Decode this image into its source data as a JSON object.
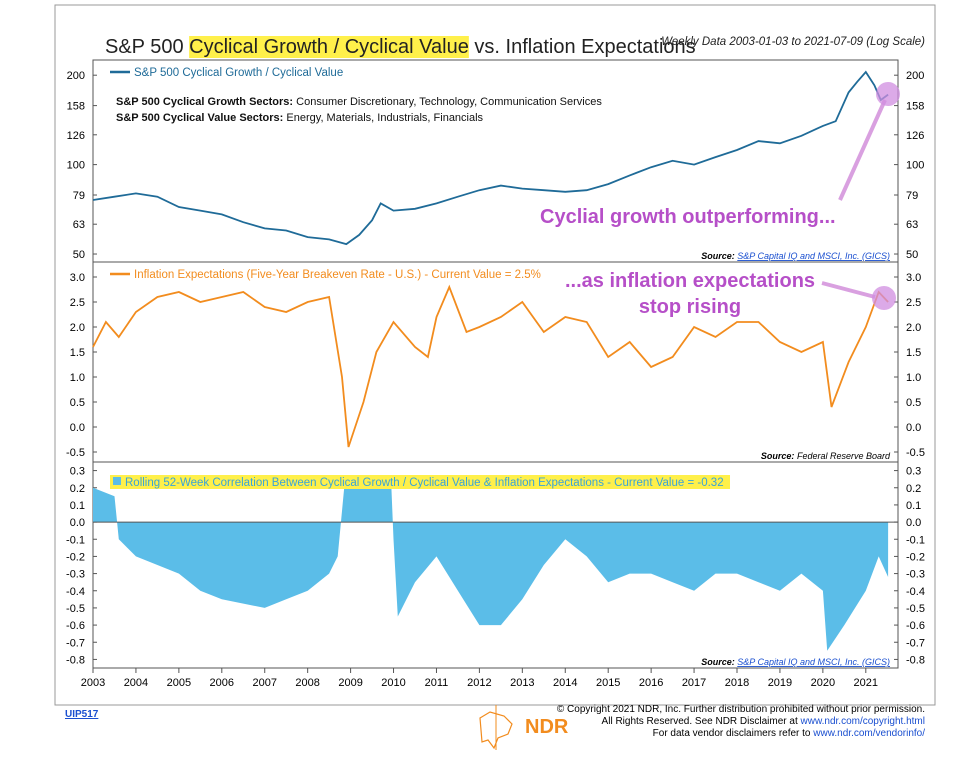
{
  "header": {
    "title_pre": "S&P 500 ",
    "title_highlight": "Cyclical Growth / Cyclical Value",
    "title_post": " vs. Inflation Expectations",
    "subtitle": "Weekly Data 2003-01-03 to 2021-07-09 (Log Scale)"
  },
  "colors": {
    "ratio": "#1f6b98",
    "inflation": "#f28c1e",
    "correlation": "#5bbde8",
    "annotation": "#b64fc8",
    "highlight": "#fff04a"
  },
  "chart_data": [
    {
      "type": "line",
      "legend": "S&P 500 Cyclical Growth / Cyclical Value",
      "growth_label": "S&P 500 Cyclical Growth Sectors:",
      "growth_text": "Consumer Discretionary, Technology, Communication Services",
      "value_label": "S&P 500 Cyclical Value Sectors:",
      "value_text": "Energy, Materials, Industrials, Financials",
      "yscale": "log",
      "yticks": [
        50,
        63,
        79,
        100,
        126,
        158,
        200
      ],
      "ylim": [
        47,
        225
      ],
      "source_label": "Source:",
      "source": "S&P Capital IQ and MSCI, Inc. (GICS)",
      "annotation": "Cyclial growth outperforming...",
      "x": [
        2003,
        2003.5,
        2004,
        2004.5,
        2005,
        2005.5,
        2006,
        2006.5,
        2007,
        2007.5,
        2008,
        2008.5,
        2008.9,
        2009.2,
        2009.5,
        2009.7,
        2010,
        2010.5,
        2011,
        2011.5,
        2012,
        2012.5,
        2013,
        2013.5,
        2014,
        2014.5,
        2015,
        2015.5,
        2016,
        2016.5,
        2017,
        2017.5,
        2018,
        2018.5,
        2019,
        2019.5,
        2020,
        2020.3,
        2020.6,
        2020.8,
        2021,
        2021.2,
        2021.35,
        2021.52
      ],
      "values": [
        76,
        78,
        80,
        78,
        72,
        70,
        68,
        64,
        61,
        60,
        57,
        56,
        54,
        58,
        65,
        74,
        70,
        71,
        74,
        78,
        82,
        85,
        83,
        82,
        81,
        82,
        86,
        92,
        98,
        103,
        100,
        106,
        112,
        120,
        118,
        125,
        135,
        140,
        175,
        190,
        205,
        185,
        165,
        172
      ]
    },
    {
      "type": "line",
      "legend": "Inflation Expectations (Five-Year Breakeven Rate - U.S.) - Current Value = 2.5%",
      "yticks": [
        -0.5,
        0.0,
        0.5,
        1.0,
        1.5,
        2.0,
        2.5,
        3.0
      ],
      "ylim": [
        -0.7,
        3.3
      ],
      "source_label": "Source:",
      "source": "Federal Reserve Board",
      "annotation_line1": "...as inflation expectations",
      "annotation_line2": "stop rising",
      "x": [
        2003,
        2003.3,
        2003.6,
        2004,
        2004.5,
        2005,
        2005.5,
        2006,
        2006.5,
        2007,
        2007.5,
        2008,
        2008.5,
        2008.8,
        2008.95,
        2009.3,
        2009.6,
        2010,
        2010.5,
        2010.8,
        2011,
        2011.3,
        2011.7,
        2012,
        2012.5,
        2013,
        2013.5,
        2014,
        2014.5,
        2015,
        2015.5,
        2016,
        2016.5,
        2017,
        2017.5,
        2018,
        2018.5,
        2019,
        2019.5,
        2020,
        2020.2,
        2020.6,
        2021,
        2021.3,
        2021.52
      ],
      "values": [
        1.6,
        2.1,
        1.8,
        2.3,
        2.6,
        2.7,
        2.5,
        2.6,
        2.7,
        2.4,
        2.3,
        2.5,
        2.6,
        1.0,
        -0.4,
        0.5,
        1.5,
        2.1,
        1.6,
        1.4,
        2.2,
        2.8,
        1.9,
        2.0,
        2.2,
        2.5,
        1.9,
        2.2,
        2.1,
        1.4,
        1.7,
        1.2,
        1.4,
        2.0,
        1.8,
        2.1,
        2.1,
        1.7,
        1.5,
        1.7,
        0.4,
        1.3,
        2.0,
        2.7,
        2.5
      ]
    },
    {
      "type": "area",
      "legend": "Rolling 52-Week Correlation Between Cyclical Growth / Cyclical Value & Inflation Expectations - Current Value = -0.32",
      "yticks": [
        -0.8,
        -0.7,
        -0.6,
        -0.5,
        -0.4,
        -0.3,
        -0.2,
        -0.1,
        0.0,
        0.1,
        0.2,
        0.3
      ],
      "ylim": [
        -0.85,
        0.35
      ],
      "source_label": "Source:",
      "source": "S&P Capital IQ and MSCI, Inc. (GICS)",
      "x": [
        2003,
        2003.5,
        2003.6,
        2004,
        2005,
        2005.5,
        2006,
        2007,
        2007.5,
        2008,
        2008.5,
        2008.7,
        2008.85,
        2009.5,
        2009.95,
        2010,
        2010.1,
        2010.5,
        2011,
        2011.5,
        2012,
        2012.5,
        2013,
        2013.5,
        2014,
        2014.5,
        2015,
        2015.5,
        2016,
        2016.5,
        2017,
        2017.5,
        2018,
        2018.5,
        2019,
        2019.5,
        2020,
        2020.1,
        2020.5,
        2021,
        2021.3,
        2021.52
      ],
      "values": [
        0.2,
        0.15,
        -0.1,
        -0.2,
        -0.3,
        -0.4,
        -0.45,
        -0.5,
        -0.45,
        -0.4,
        -0.3,
        -0.2,
        0.2,
        0.2,
        0.2,
        -0.1,
        -0.55,
        -0.35,
        -0.2,
        -0.4,
        -0.6,
        -0.6,
        -0.45,
        -0.25,
        -0.1,
        -0.2,
        -0.35,
        -0.3,
        -0.3,
        -0.35,
        -0.4,
        -0.3,
        -0.3,
        -0.35,
        -0.4,
        -0.3,
        -0.4,
        -0.75,
        -0.6,
        -0.4,
        -0.2,
        -0.32
      ]
    }
  ],
  "x_axis": {
    "xlim": [
      2003,
      2021.75
    ],
    "ticks": [
      "2003",
      "2004",
      "2005",
      "2006",
      "2007",
      "2008",
      "2009",
      "2010",
      "2011",
      "2012",
      "2013",
      "2014",
      "2015",
      "2016",
      "2017",
      "2018",
      "2019",
      "2020",
      "2021"
    ]
  },
  "footer": {
    "code": "UIP517",
    "logo_text": "NDR",
    "line1": "© Copyright 2021 NDR, Inc. Further distribution prohibited without prior permission.",
    "line2_pre": "All Rights Reserved. See NDR Disclaimer at ",
    "line2_link": "www.ndr.com/copyright.html",
    "line3_pre": "For data vendor disclaimers refer to ",
    "line3_link": "www.ndr.com/vendorinfo/"
  }
}
